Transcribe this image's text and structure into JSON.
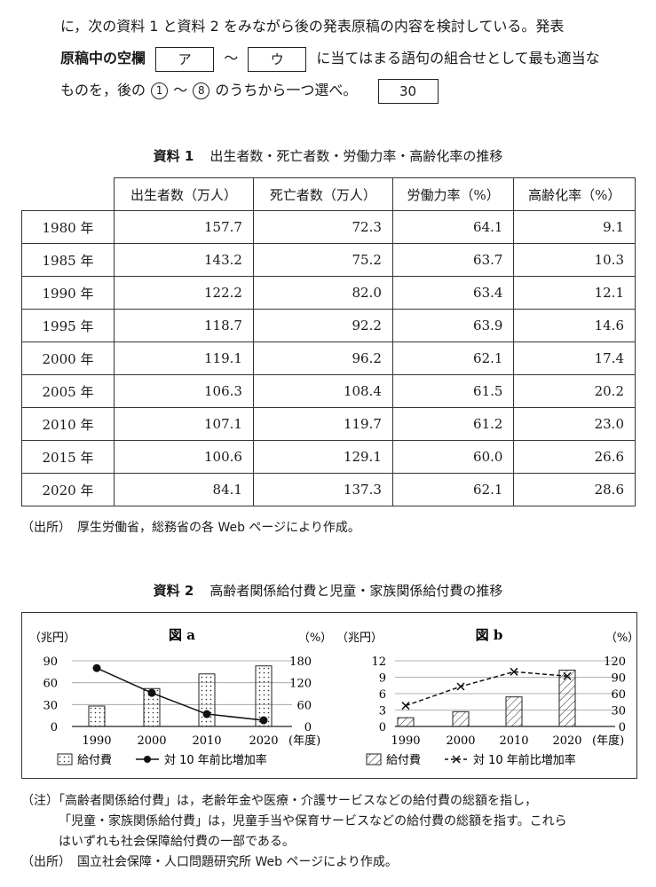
{
  "intro": {
    "line1": "に，次の資料 1 と資料 2 をみながら後の発表原稿の内容を検討している。発表",
    "line2_a": "原稿中の空欄",
    "blank_a": "ア",
    "tilde": "～",
    "blank_c": "ウ",
    "line2_b": "に当てはまる語句の組合せとして最も適当な",
    "line3_a": "ものを，後の",
    "choice_first": "1",
    "choice_last": "8",
    "line3_b": "のうちから一つ選べ。",
    "question_number": "30"
  },
  "material1": {
    "label": "資料 1",
    "title": "出生者数・死亡者数・労働力率・高齢化率の推移",
    "headers": [
      "出生者数（万人）",
      "死亡者数（万人）",
      "労働力率（%）",
      "高齢化率（%）"
    ],
    "rows": [
      {
        "year": "1980 年",
        "births": "157.7",
        "deaths": "72.3",
        "labor": "64.1",
        "aging": "9.1"
      },
      {
        "year": "1985 年",
        "births": "143.2",
        "deaths": "75.2",
        "labor": "63.7",
        "aging": "10.3"
      },
      {
        "year": "1990 年",
        "births": "122.2",
        "deaths": "82.0",
        "labor": "63.4",
        "aging": "12.1"
      },
      {
        "year": "1995 年",
        "births": "118.7",
        "deaths": "92.2",
        "labor": "63.9",
        "aging": "14.6"
      },
      {
        "year": "2000 年",
        "births": "119.1",
        "deaths": "96.2",
        "labor": "62.1",
        "aging": "17.4"
      },
      {
        "year": "2005 年",
        "births": "106.3",
        "deaths": "108.4",
        "labor": "61.5",
        "aging": "20.2"
      },
      {
        "year": "2010 年",
        "births": "107.1",
        "deaths": "119.7",
        "labor": "61.2",
        "aging": "23.0"
      },
      {
        "year": "2015 年",
        "births": "100.6",
        "deaths": "129.1",
        "labor": "60.0",
        "aging": "26.6"
      },
      {
        "year": "2020 年",
        "births": "84.1",
        "deaths": "137.3",
        "labor": "62.1",
        "aging": "28.6"
      }
    ],
    "source": "（出所）　厚生労働省，総務省の各 Web ページにより作成。"
  },
  "material2": {
    "label": "資料 2",
    "title": "高齢者関係給付費と児童・家族関係給付費の推移"
  },
  "chart_data": [
    {
      "type": "bar",
      "title": "図 a",
      "categories": [
        "1990",
        "2000",
        "2010",
        "2020"
      ],
      "x_suffix": "(年度)",
      "left_unit": "（兆円）",
      "right_unit": "（%）",
      "left_ticks": [
        "0",
        "30",
        "60",
        "90"
      ],
      "right_ticks": [
        "0",
        "60",
        "120",
        "180"
      ],
      "left_range": [
        0,
        90
      ],
      "right_range": [
        0,
        180
      ],
      "bar_pattern": "dots",
      "line_style": "solid-dot-markers",
      "series": [
        {
          "name": "給付費",
          "kind": "bar",
          "axis": "left",
          "values": [
            28,
            52,
            72,
            83
          ]
        },
        {
          "name": "対 10 年前比増加率",
          "kind": "line",
          "axis": "right",
          "values": [
            160,
            92,
            34,
            17
          ]
        }
      ]
    },
    {
      "type": "bar",
      "title": "図 b",
      "categories": [
        "1990",
        "2000",
        "2010",
        "2020"
      ],
      "x_suffix": "(年度)",
      "left_unit": "（兆円）",
      "right_unit": "（%）",
      "left_ticks": [
        "0",
        "3",
        "6",
        "9",
        "12"
      ],
      "right_ticks": [
        "0",
        "30",
        "60",
        "90",
        "120"
      ],
      "left_range": [
        0,
        12
      ],
      "right_range": [
        0,
        120
      ],
      "bar_pattern": "hatch",
      "line_style": "dashed-x-markers",
      "series": [
        {
          "name": "給付費",
          "kind": "bar",
          "axis": "left",
          "values": [
            1.6,
            2.7,
            5.4,
            10.3
          ]
        },
        {
          "name": "対 10 年前比増加率",
          "kind": "line",
          "axis": "right",
          "values": [
            38,
            73,
            100,
            92
          ]
        }
      ]
    }
  ],
  "note": {
    "line1": "（注）「高齢者関係給付費」は，老齢年金や医療・介護サービスなどの給付費の総額を指し，",
    "line2": "「児童・家族関係給付費」は，児童手当や保育サービスなどの給付費の総額を指す。これら",
    "line3": "はいずれも社会保障給付費の一部である。",
    "source": "（出所）　国立社会保障・人口問題研究所 Web ページにより作成。"
  },
  "colors": {
    "ink": "#1a1a1a",
    "background": "#ffffff"
  }
}
